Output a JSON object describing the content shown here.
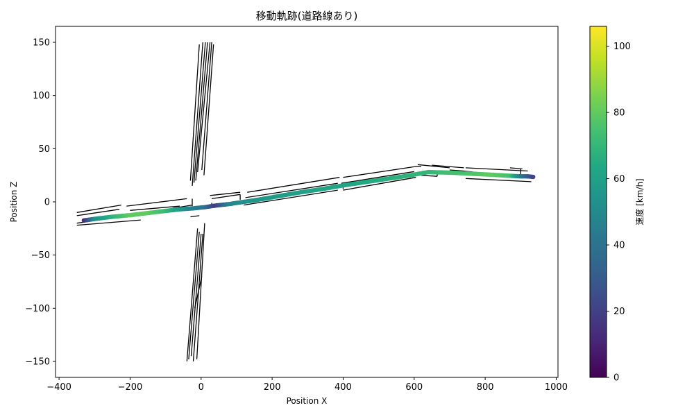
{
  "chart_data": {
    "type": "scatter",
    "title": "移動軌跡(道路線あり)",
    "xlabel": "Position X",
    "ylabel": "Position Z",
    "xlim": [
      -410,
      1005
    ],
    "ylim": [
      -165,
      165
    ],
    "xticks": [
      -400,
      -200,
      0,
      200,
      400,
      600,
      800,
      1000
    ],
    "xtick_labels": [
      "−400",
      "−200",
      "0",
      "200",
      "400",
      "600",
      "800",
      "1000"
    ],
    "yticks": [
      -150,
      -100,
      -50,
      0,
      50,
      100,
      150
    ],
    "ytick_labels": [
      "−150",
      "−100",
      "−50",
      "0",
      "50",
      "100",
      "150"
    ],
    "grid": false,
    "colorbar": {
      "label": "速度 [km/h]",
      "min": 0,
      "max": 106,
      "ticks": [
        0,
        20,
        40,
        60,
        80,
        100
      ],
      "tick_labels": [
        "0",
        "20",
        "40",
        "60",
        "80",
        "100"
      ],
      "colormap": "viridis"
    },
    "trajectory": [
      {
        "x": -330,
        "z": -17.5,
        "speed": 10
      },
      {
        "x": -300,
        "z": -16,
        "speed": 52
      },
      {
        "x": -250,
        "z": -14,
        "speed": 68
      },
      {
        "x": -200,
        "z": -12.5,
        "speed": 80
      },
      {
        "x": -150,
        "z": -10.5,
        "speed": 80
      },
      {
        "x": -100,
        "z": -8.5,
        "speed": 72
      },
      {
        "x": -60,
        "z": -7,
        "speed": 58
      },
      {
        "x": -20,
        "z": -6,
        "speed": 45
      },
      {
        "x": 10,
        "z": -5,
        "speed": 40
      },
      {
        "x": 40,
        "z": -3.5,
        "speed": 18
      },
      {
        "x": 80,
        "z": -2,
        "speed": 48
      },
      {
        "x": 120,
        "z": 0,
        "speed": 52
      },
      {
        "x": 160,
        "z": 2,
        "speed": 56
      },
      {
        "x": 220,
        "z": 5.5,
        "speed": 58
      },
      {
        "x": 280,
        "z": 9,
        "speed": 60
      },
      {
        "x": 340,
        "z": 12,
        "speed": 62
      },
      {
        "x": 400,
        "z": 15.5,
        "speed": 62
      },
      {
        "x": 460,
        "z": 18.5,
        "speed": 64
      },
      {
        "x": 520,
        "z": 21.5,
        "speed": 66
      },
      {
        "x": 580,
        "z": 24.5,
        "speed": 68
      },
      {
        "x": 640,
        "z": 28,
        "speed": 70
      },
      {
        "x": 700,
        "z": 27.5,
        "speed": 74
      },
      {
        "x": 760,
        "z": 26.5,
        "speed": 76
      },
      {
        "x": 820,
        "z": 25.5,
        "speed": 80
      },
      {
        "x": 870,
        "z": 24.5,
        "speed": 74
      },
      {
        "x": 900,
        "z": 24,
        "speed": 45
      },
      {
        "x": 920,
        "z": 24,
        "speed": 32
      },
      {
        "x": 935,
        "z": 23.5,
        "speed": 22
      }
    ],
    "road_lines": [
      [
        [
          -350,
          -10
        ],
        [
          -225,
          -3
        ]
      ],
      [
        [
          -350,
          -13
        ],
        [
          -230,
          -7
        ]
      ],
      [
        [
          -350,
          -20
        ],
        [
          -180,
          -12
        ]
      ],
      [
        [
          -350,
          -22
        ],
        [
          -170,
          -17
        ]
      ],
      [
        [
          -210,
          -4
        ],
        [
          -40,
          3
        ]
      ],
      [
        [
          -200,
          -8
        ],
        [
          -60,
          -4
        ]
      ],
      [
        [
          -80,
          -6
        ],
        [
          -25,
          -3
        ]
      ],
      [
        [
          -25,
          3
        ],
        [
          -25,
          -4
        ]
      ],
      [
        [
          -30,
          -14
        ],
        [
          -5,
          -13
        ]
      ],
      [
        [
          25,
          6
        ],
        [
          110,
          9
        ]
      ],
      [
        [
          30,
          3
        ],
        [
          110,
          7
        ]
      ],
      [
        [
          110,
          7
        ],
        [
          110,
          2
        ]
      ],
      [
        [
          30,
          -3
        ],
        [
          85,
          -1.5
        ]
      ],
      [
        [
          30,
          -3
        ],
        [
          30,
          -1
        ]
      ],
      [
        [
          130,
          9
        ],
        [
          390,
          23
        ]
      ],
      [
        [
          125,
          4
        ],
        [
          385,
          17.5
        ]
      ],
      [
        [
          135,
          0
        ],
        [
          385,
          14
        ]
      ],
      [
        [
          120,
          -3
        ],
        [
          385,
          11
        ]
      ],
      [
        [
          400,
          23
        ],
        [
          600,
          33
        ]
      ],
      [
        [
          395,
          17.5
        ],
        [
          600,
          28.5
        ]
      ],
      [
        [
          400,
          14
        ],
        [
          600,
          24
        ]
      ],
      [
        [
          400,
          11
        ],
        [
          605,
          23
        ]
      ],
      [
        [
          400,
          18
        ],
        [
          400,
          12
        ]
      ],
      [
        [
          600,
          33
        ],
        [
          620,
          33.5
        ]
      ],
      [
        [
          610,
          35
        ],
        [
          700,
          32
        ]
      ],
      [
        [
          650,
          34.5
        ],
        [
          740,
          32
        ]
      ],
      [
        [
          605,
          25
        ],
        [
          655,
          29
        ]
      ],
      [
        [
          620,
          25
        ],
        [
          665,
          24
        ]
      ],
      [
        [
          700,
          30
        ],
        [
          740,
          29
        ]
      ],
      [
        [
          740,
          29
        ],
        [
          740,
          26
        ]
      ],
      [
        [
          665,
          27
        ],
        [
          665,
          24
        ]
      ],
      [
        [
          680,
          29
        ],
        [
          900,
          24
        ]
      ],
      [
        [
          745,
          32
        ],
        [
          920,
          29
        ]
      ],
      [
        [
          740,
          29
        ],
        [
          850,
          25
        ]
      ],
      [
        [
          745,
          22
        ],
        [
          930,
          19
        ]
      ],
      [
        [
          870,
          32
        ],
        [
          905,
          31
        ]
      ],
      [
        [
          900,
          31
        ],
        [
          900,
          25
        ]
      ],
      [
        [
          -30,
          20
        ],
        [
          -5,
          148
        ]
      ],
      [
        [
          -25,
          15
        ],
        [
          5,
          150
        ]
      ],
      [
        [
          -20,
          18
        ],
        [
          12,
          150
        ]
      ],
      [
        [
          -15,
          20
        ],
        [
          18,
          150
        ]
      ],
      [
        [
          -10,
          28
        ],
        [
          25,
          150
        ]
      ],
      [
        [
          2,
          30
        ],
        [
          30,
          150
        ]
      ],
      [
        [
          8,
          25
        ],
        [
          35,
          148
        ]
      ],
      [
        [
          -40,
          -150
        ],
        [
          -10,
          -25
        ]
      ],
      [
        [
          -35,
          -148
        ],
        [
          -5,
          -28
        ]
      ],
      [
        [
          -28,
          -145
        ],
        [
          0,
          -30
        ]
      ],
      [
        [
          -22,
          -150
        ],
        [
          5,
          -30
        ]
      ],
      [
        [
          -12,
          -148
        ],
        [
          10,
          -20
        ]
      ],
      [
        [
          -18,
          -100
        ],
        [
          2,
          -70
        ]
      ]
    ]
  }
}
